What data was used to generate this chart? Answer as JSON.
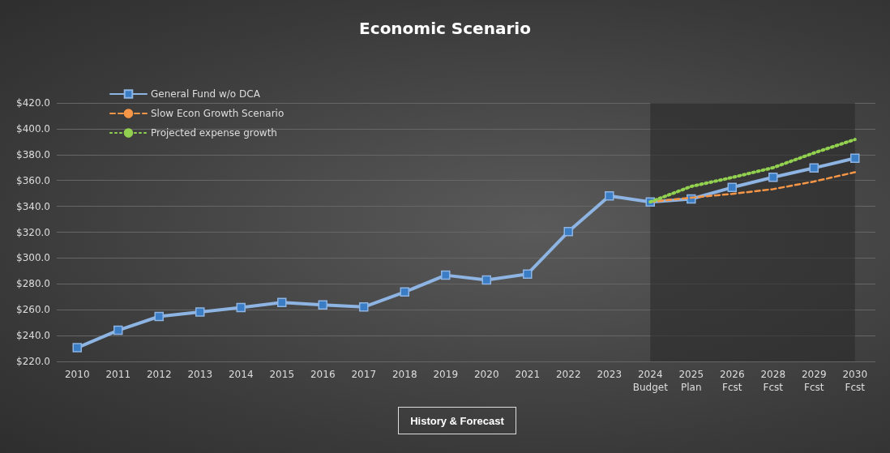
{
  "chart_data": {
    "type": "line",
    "title": "Economic Scenario",
    "xlabel": "History & Forecast",
    "categories": [
      "2010",
      "2011",
      "2012",
      "2013",
      "2014",
      "2015",
      "2016",
      "2017",
      "2018",
      "2019",
      "2020",
      "2021",
      "2022",
      "2023",
      "2024\nBudget",
      "2025\nPlan",
      "2026\nFcst",
      "2028\nFcst",
      "2029\nFcst",
      "2030\nFcst"
    ],
    "series": [
      {
        "name": "General Fund w/o DCA",
        "color": "#8db4e2",
        "marker": "square",
        "line_style": "solid",
        "values": [
          230.6,
          244.1,
          254.8,
          258.2,
          261.7,
          265.6,
          263.8,
          262.1,
          273.7,
          286.7,
          283.0,
          287.6,
          320.4,
          348.0,
          343.4,
          345.7,
          354.6,
          362.5,
          369.7,
          377.2
        ]
      },
      {
        "name": "Slow Econ Growth Scenario",
        "color": "#f79646",
        "marker": "none",
        "line_style": "dashed",
        "values": [
          null,
          null,
          null,
          null,
          null,
          null,
          null,
          null,
          null,
          null,
          null,
          null,
          null,
          null,
          343.4,
          346.7,
          349.6,
          353.3,
          359.2,
          366.4
        ]
      },
      {
        "name": "Projected expense growth",
        "color": "#92d050",
        "marker": "none",
        "line_style": "dotted",
        "values": [
          null,
          null,
          null,
          null,
          null,
          null,
          null,
          null,
          null,
          null,
          null,
          null,
          null,
          null,
          343.4,
          355.4,
          362.3,
          369.9,
          381.3,
          391.7
        ]
      }
    ],
    "bands": [
      {
        "axis": "x",
        "from": "2024\nBudget",
        "to": "2030\nFcst",
        "color": "#2a2a2a"
      }
    ],
    "ylim": [
      220,
      420
    ],
    "yticks": [
      {
        "value": 220,
        "label": "$220.0"
      },
      {
        "value": 240,
        "label": "$240.0"
      },
      {
        "value": 260,
        "label": "$260.0"
      },
      {
        "value": 280,
        "label": "$280.0"
      },
      {
        "value": 300,
        "label": "$300.0"
      },
      {
        "value": 320,
        "label": "$320.0"
      },
      {
        "value": 340,
        "label": "$340.0"
      },
      {
        "value": 360,
        "label": "$360.0"
      },
      {
        "value": 380,
        "label": "$380.0"
      },
      {
        "value": 400,
        "label": "$400.0"
      },
      {
        "value": 420,
        "label": "$420.0"
      }
    ],
    "grid": "y",
    "legend": "top left"
  }
}
